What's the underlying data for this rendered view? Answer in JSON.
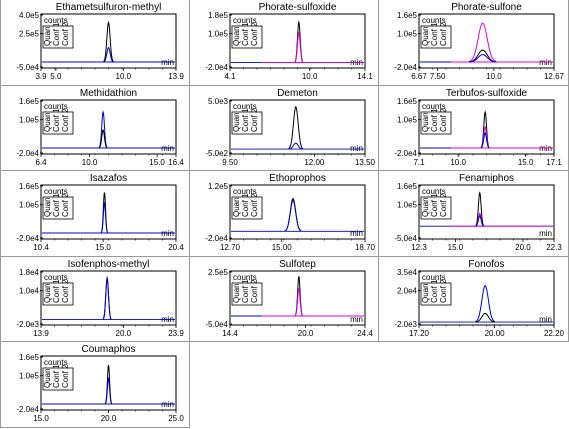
{
  "colors": {
    "quan": "#000000",
    "conf1": "#0000cc",
    "conf2": "#e000e0",
    "frame": "#000000"
  },
  "labels": {
    "counts": "counts",
    "min": "min",
    "quan": "Quan",
    "conf1": "Conf 1",
    "conf2": "Conf 2"
  },
  "chart_data": [
    {
      "type": "line",
      "title": "Ethametsulfuron-methyl",
      "ylabels": [
        "4.0e5",
        "2.5e5",
        "-5.0e4"
      ],
      "ylim": [
        -50000,
        400000
      ],
      "xlim": [
        3.9,
        13.9
      ],
      "xticks": [
        3.9,
        5.0,
        10.0,
        13.9
      ],
      "xticklabels": [
        "3.9",
        "5.0",
        "10.0",
        "13.9"
      ],
      "markers": 3,
      "peaks": [
        {
          "rt": 8.9,
          "width": 0.12,
          "heights": [
            {
              "series": "Quan",
              "height": 330000
            },
            {
              "series": "Conf 1",
              "height": 120000
            }
          ]
        }
      ]
    },
    {
      "type": "line",
      "title": "Phorate-sulfoxide",
      "ylabels": [
        "1.8e5",
        "1.0e5",
        "-2.0e4"
      ],
      "ylim": [
        -20000,
        180000
      ],
      "xlim": [
        4.1,
        14.1
      ],
      "xticks": [
        4.1,
        10.0,
        14.1
      ],
      "xticklabels": [
        "4.1",
        "10.0",
        "14.1"
      ],
      "markers": 3,
      "peaks": [
        {
          "rt": 9.2,
          "width": 0.1,
          "heights": [
            {
              "series": "Quan",
              "height": 150000
            },
            {
              "series": "Conf 2",
              "height": 110000
            }
          ]
        }
      ]
    },
    {
      "type": "line",
      "title": "Phorate-sulfone",
      "ylabels": [
        "1.6e5",
        "1.0e5",
        "-2.0e4"
      ],
      "ylim": [
        -20000,
        160000
      ],
      "xlim": [
        6.67,
        12.67
      ],
      "xticks": [
        6.67,
        7.5,
        10.0,
        12.67
      ],
      "xticklabels": [
        "6.67",
        "7.50",
        "10.0",
        "12.67"
      ],
      "markers": 3,
      "peaks": [
        {
          "rt": 9.5,
          "width": 0.2,
          "heights": [
            {
              "series": "Conf 2",
              "height": 130000
            },
            {
              "series": "Quan",
              "height": 40000
            },
            {
              "series": "Conf 1",
              "height": 25000
            }
          ]
        }
      ]
    },
    {
      "type": "line",
      "title": "Methidathion",
      "ylabels": [
        "1.6e5",
        "1.0e5",
        "-2.0e4"
      ],
      "ylim": [
        -20000,
        160000
      ],
      "xlim": [
        6.4,
        16.4
      ],
      "xticks": [
        6.4,
        10.0,
        15.0,
        16.4
      ],
      "xticklabels": [
        "6.4",
        "10.0",
        "15.0",
        "16.4"
      ],
      "markers": 3,
      "peaks": [
        {
          "rt": 11.0,
          "width": 0.1,
          "heights": [
            {
              "series": "Conf 1",
              "height": 120000
            },
            {
              "series": "Quan",
              "height": 60000
            }
          ]
        }
      ]
    },
    {
      "type": "line",
      "title": "Demeton",
      "ylabels": [
        "5.0e3",
        "-5.0e2"
      ],
      "ylim": [
        -500,
        5000
      ],
      "xlim": [
        9.5,
        13.5
      ],
      "xticks": [
        9.5,
        12.0,
        13.5
      ],
      "xticklabels": [
        "9.50",
        "12.00",
        "13.50"
      ],
      "markers": 3,
      "peaks": [
        {
          "rt": 11.45,
          "width": 0.07,
          "heights": [
            {
              "series": "Quan",
              "height": 4300
            },
            {
              "series": "Conf 1",
              "height": 600
            }
          ]
        }
      ]
    },
    {
      "type": "line",
      "title": "Terbufos-sulfoxide",
      "ylabels": [
        "1.6e5",
        "1.0e5",
        "-2.0e4"
      ],
      "ylim": [
        -20000,
        160000
      ],
      "xlim": [
        7.1,
        17.1
      ],
      "xticks": [
        7.1,
        10.0,
        15.0,
        17.1
      ],
      "xticklabels": [
        "7.1",
        "10.0",
        "15.0",
        "17.1"
      ],
      "markers": 3,
      "peaks": [
        {
          "rt": 12.0,
          "width": 0.1,
          "heights": [
            {
              "series": "Quan",
              "height": 120000
            },
            {
              "series": "Conf 2",
              "height": 70000
            },
            {
              "series": "Conf 1",
              "height": 50000
            }
          ]
        }
      ]
    },
    {
      "type": "line",
      "title": "Isazafos",
      "ylabels": [
        "1.6e5",
        "1.0e5",
        "-2.0e4"
      ],
      "ylim": [
        -20000,
        160000
      ],
      "xlim": [
        10.4,
        20.4
      ],
      "xticks": [
        10.4,
        15.0,
        20.4
      ],
      "xticklabels": [
        "10.4",
        "15.0",
        "20.4"
      ],
      "markers": 3,
      "peaks": [
        {
          "rt": 15.1,
          "width": 0.08,
          "heights": [
            {
              "series": "Quan",
              "height": 135000
            },
            {
              "series": "Conf 1",
              "height": 100000
            }
          ]
        }
      ]
    },
    {
      "type": "line",
      "title": "Ethoprophos",
      "ylabels": [
        "1.2e5",
        "-2.0e4"
      ],
      "ylim": [
        -20000,
        120000
      ],
      "xlim": [
        12.7,
        18.7
      ],
      "xticks": [
        12.7,
        15.0,
        18.7
      ],
      "xticklabels": [
        "12.70",
        "15.00",
        "18.70"
      ],
      "markers": 3,
      "peaks": [
        {
          "rt": 15.5,
          "width": 0.12,
          "heights": [
            {
              "series": "Quan",
              "height": 85000
            },
            {
              "series": "Conf 1",
              "height": 80000
            }
          ]
        }
      ]
    },
    {
      "type": "line",
      "title": "Fenamiphos",
      "ylabels": [
        "1.6e5",
        "1.0e5",
        "-5.0e4"
      ],
      "ylim": [
        -50000,
        160000
      ],
      "xlim": [
        12.3,
        22.3
      ],
      "xticks": [
        12.3,
        15.0,
        20.0,
        22.3
      ],
      "xticklabels": [
        "12.3",
        "15.0",
        "20.0",
        "22.3"
      ],
      "markers": 3,
      "peaks": [
        {
          "rt": 16.8,
          "width": 0.1,
          "heights": [
            {
              "series": "Quan",
              "height": 130000
            },
            {
              "series": "Conf 2",
              "height": 50000
            },
            {
              "series": "Conf 1",
              "height": 40000
            }
          ]
        }
      ]
    },
    {
      "type": "line",
      "title": "Isofenphos-methyl",
      "ylabels": [
        "1.8e4",
        "1.0e4",
        "-2.0e3"
      ],
      "ylim": [
        -2000,
        18000
      ],
      "xlim": [
        13.9,
        23.9
      ],
      "xticks": [
        13.9,
        20.0,
        23.9
      ],
      "xticklabels": [
        "13.9",
        "20.0",
        "23.9"
      ],
      "markers": 3,
      "peaks": [
        {
          "rt": 18.8,
          "width": 0.1,
          "heights": [
            {
              "series": "Quan",
              "height": 15500
            },
            {
              "series": "Conf 1",
              "height": 15000
            }
          ]
        }
      ]
    },
    {
      "type": "line",
      "title": "Sulfotep",
      "ylabels": [
        "2.5e5",
        "-5.0e4"
      ],
      "ylim": [
        -50000,
        250000
      ],
      "xlim": [
        14.4,
        24.4
      ],
      "xticks": [
        14.4,
        20.0,
        24.4
      ],
      "xticklabels": [
        "14.4",
        "20.0",
        "24.4"
      ],
      "markers": 3,
      "peaks": [
        {
          "rt": 19.5,
          "width": 0.09,
          "heights": [
            {
              "series": "Quan",
              "height": 220000
            },
            {
              "series": "Conf 2",
              "height": 150000
            }
          ]
        }
      ]
    },
    {
      "type": "line",
      "title": "Fonofos",
      "ylabels": [
        "3.5e4",
        "2.0e4",
        "-2.0e3"
      ],
      "ylim": [
        -2000,
        35000
      ],
      "xlim": [
        17.2,
        22.2
      ],
      "xticks": [
        17.2,
        20.0,
        22.2
      ],
      "xticklabels": [
        "17.20",
        "20.00",
        "22.20"
      ],
      "markers": 3,
      "peaks": [
        {
          "rt": 19.65,
          "width": 0.12,
          "heights": [
            {
              "series": "Conf 1",
              "height": 25000
            },
            {
              "series": "Quan",
              "height": 6000
            }
          ]
        }
      ]
    },
    {
      "type": "line",
      "title": "Coumaphos",
      "ylabels": [
        "1.6e5",
        "1.0e5",
        "-2.0e4"
      ],
      "ylim": [
        -20000,
        160000
      ],
      "xlim": [
        15.0,
        25.0
      ],
      "xticks": [
        15.0,
        20.0,
        25.0
      ],
      "xticklabels": [
        "15.0",
        "20.0",
        "25.0"
      ],
      "markers": 3,
      "peaks": [
        {
          "rt": 20.0,
          "width": 0.08,
          "heights": [
            {
              "series": "Quan",
              "height": 130000
            },
            {
              "series": "Conf 1",
              "height": 85000
            }
          ]
        }
      ]
    }
  ]
}
